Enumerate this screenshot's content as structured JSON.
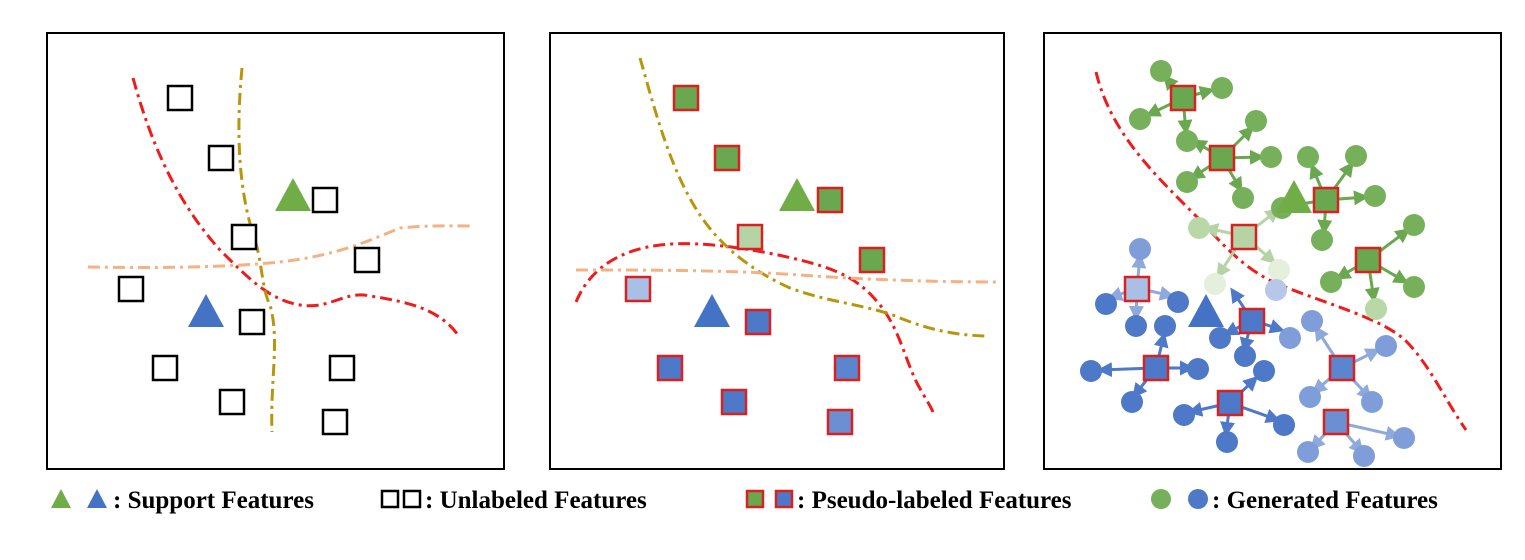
{
  "legend": {
    "support_label": ": Support Features",
    "unlabeled_label": ": Unlabeled Features",
    "pseudo_label": ": Pseudo-labeled Features",
    "generated_label": ": Generated Features"
  },
  "colors": {
    "green_class": "#70ad47",
    "green_fill": "#6aa84f",
    "green_light": "#b5d3a4",
    "blue_class": "#4472c4",
    "blue_fill": "#5b7fc7",
    "blue_light": "#a9c0e6",
    "boundary_red": "#ee1c1c",
    "boundary_gold": "#b8960c",
    "boundary_peach": "#f4b183",
    "outline_red": "#d9211f",
    "outline_black": "#000000"
  },
  "panels": [
    {
      "name": "panel-support-unlabeled",
      "content": "support and unlabeled features with decision boundaries"
    },
    {
      "name": "panel-pseudo-labeled",
      "content": "support and pseudo-labeled features with decision boundaries"
    },
    {
      "name": "panel-generated",
      "content": "pseudo-labeled features with generated features"
    }
  ]
}
